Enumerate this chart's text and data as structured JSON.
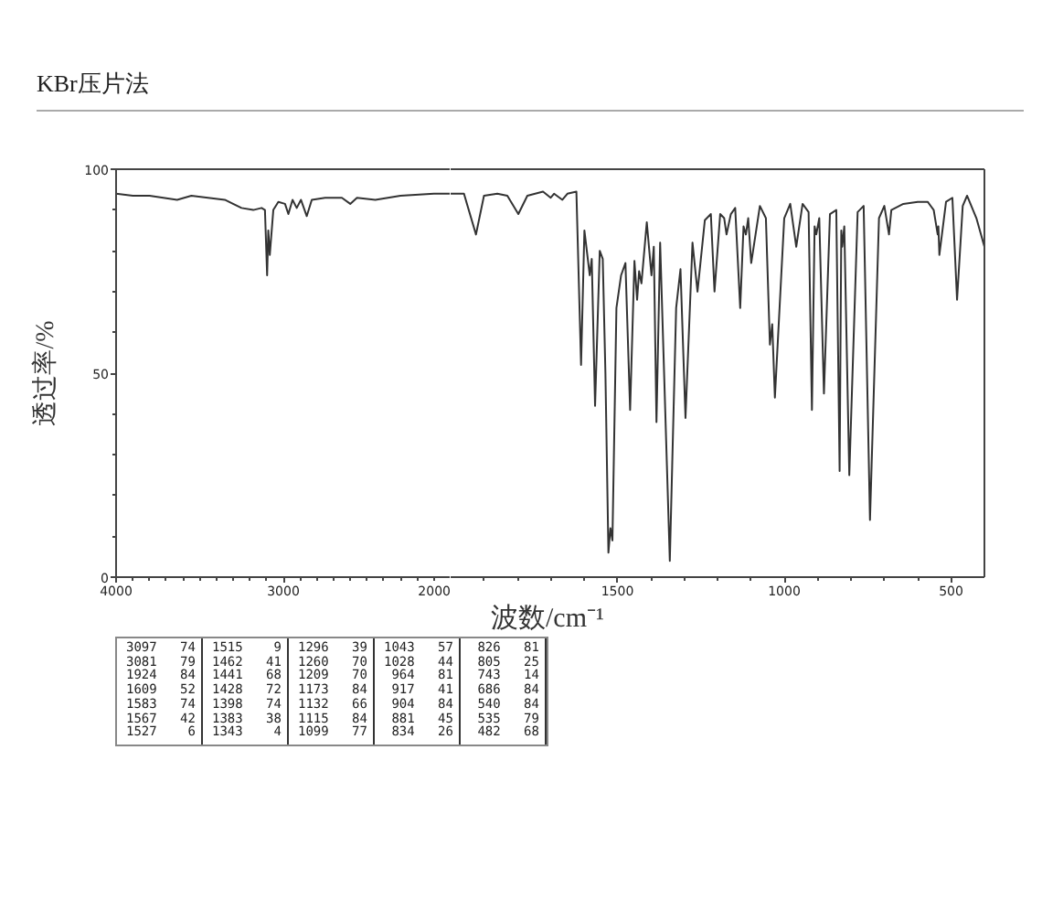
{
  "chart_data": [
    {
      "type": "line",
      "title": "KBr压片法",
      "ylabel": "透过率/%",
      "xlim": [
        4000,
        2000
      ],
      "ylim": [
        0,
        100
      ],
      "xticks": [
        4000,
        {
          "value": 3900,
          "label": null
        },
        {
          "value": 3800,
          "label": null
        },
        {
          "value": 3700,
          "label": null
        },
        {
          "value": 3600,
          "label": null
        },
        {
          "value": 3500,
          "label": null
        },
        {
          "value": 3400,
          "label": null
        },
        {
          "value": 3300,
          "label": null
        },
        {
          "value": 3200,
          "label": null
        },
        {
          "value": 3100,
          "label": null
        },
        3000,
        {
          "value": 2900,
          "label": null
        },
        {
          "value": 2800,
          "label": null
        },
        {
          "value": 2700,
          "label": null
        },
        {
          "value": 2600,
          "label": null
        },
        {
          "value": 2500,
          "label": null
        },
        {
          "value": 2400,
          "label": null
        },
        {
          "value": 2300,
          "label": null
        },
        {
          "value": 2200,
          "label": null
        },
        {
          "value": 2100,
          "label": null
        },
        2000
      ],
      "yticks": [
        0,
        {
          "value": 10,
          "label": null
        },
        {
          "value": 20,
          "label": null
        },
        {
          "value": 30,
          "label": null
        },
        {
          "value": 40,
          "label": null
        },
        50,
        {
          "value": 60,
          "label": null
        },
        {
          "value": 70,
          "label": null
        },
        {
          "value": 80,
          "label": null
        },
        {
          "value": 90,
          "label": null
        },
        100
      ],
      "color": "#333333",
      "x": [
        4000,
        3900,
        3800,
        3635,
        3550,
        3450,
        3350,
        3250,
        3180,
        3130,
        3110,
        3097,
        3090,
        3081,
        3060,
        3030,
        2990,
        2970,
        2945,
        2920,
        2895,
        2860,
        2830,
        2750,
        2650,
        2600,
        2560,
        2450,
        2300,
        2100,
        2000
      ],
      "values": [
        94,
        93.5,
        93.5,
        92.5,
        93.5,
        93,
        92.5,
        90.5,
        90,
        90.5,
        90,
        74,
        85,
        79,
        90,
        92,
        91.5,
        89,
        92.5,
        90.5,
        92.5,
        88.5,
        92.5,
        93,
        93,
        91.5,
        93,
        92.5,
        93.5,
        94,
        94
      ],
      "annotations": [
        "3097 74",
        "3081 79"
      ]
    },
    {
      "type": "line",
      "xlabel": "波数/cm⁻¹",
      "tick_labels": "x",
      "xlim": [
        2000,
        400
      ],
      "ylim": [
        0,
        100
      ],
      "xticks": [
        {
          "value": 1900,
          "label": null
        },
        {
          "value": 1800,
          "label": null
        },
        {
          "value": 1700,
          "label": null
        },
        {
          "value": 1600,
          "label": null
        },
        1500,
        {
          "value": 1400,
          "label": null
        },
        {
          "value": 1300,
          "label": null
        },
        {
          "value": 1200,
          "label": null
        },
        {
          "value": 1100,
          "label": null
        },
        1000,
        {
          "value": 900,
          "label": null
        },
        {
          "value": 800,
          "label": null
        },
        {
          "value": 700,
          "label": null
        },
        {
          "value": 600,
          "label": null
        },
        500
      ],
      "color": "#333333",
      "x": [
        2000,
        1960,
        1924,
        1900,
        1860,
        1830,
        1797,
        1770,
        1723,
        1700,
        1690,
        1665,
        1650,
        1623,
        1609,
        1599,
        1583,
        1577,
        1567,
        1553,
        1544,
        1536,
        1527,
        1521,
        1515,
        1503,
        1489,
        1476,
        1462,
        1449,
        1441,
        1435,
        1428,
        1412,
        1398,
        1391,
        1383,
        1372,
        1343,
        1324,
        1311,
        1296,
        1275,
        1260,
        1238,
        1220,
        1209,
        1192,
        1180,
        1173,
        1160,
        1147,
        1132,
        1122,
        1115,
        1108,
        1099,
        1073,
        1055,
        1043,
        1036,
        1028,
        1000,
        982,
        964,
        945,
        927,
        917,
        909,
        904,
        895,
        881,
        863,
        844,
        834,
        829,
        826,
        820,
        805,
        780,
        762,
        743,
        716,
        700,
        686,
        679,
        643,
        600,
        570,
        552,
        540,
        538,
        535,
        515,
        496,
        482,
        465,
        452,
        424,
        400
      ],
      "values": [
        94,
        94,
        84,
        93.5,
        94,
        93.5,
        89,
        93.5,
        94.5,
        93,
        94,
        92.5,
        94,
        94.5,
        52,
        85,
        74,
        78,
        42,
        80,
        78,
        50,
        6,
        12,
        9,
        66,
        74,
        77,
        41,
        77.5,
        68,
        75,
        72,
        87,
        74,
        81,
        38,
        82,
        4,
        66,
        75.5,
        39,
        82,
        70,
        87.5,
        89,
        70,
        89,
        88,
        84,
        89,
        90.5,
        66,
        86,
        84,
        88,
        77,
        91,
        88,
        57,
        62,
        44,
        88,
        91.5,
        81,
        91.5,
        89.5,
        41,
        86,
        84,
        88,
        45,
        89,
        90,
        26,
        85,
        81,
        86,
        25,
        89.5,
        91,
        14,
        88,
        91,
        84,
        90,
        91.5,
        92,
        92,
        90,
        84,
        86,
        79,
        92,
        93,
        68,
        91,
        93.5,
        88,
        81
      ],
      "annotations": [
        "1924 84",
        "1609 52",
        "1583 74",
        "1567 42",
        "1527 6",
        "1515 9",
        "1462 41",
        "1441 68",
        "1428 72",
        "1398 74",
        "1383 38",
        "1343 4",
        "1296 39",
        "1260 70",
        "1209 70",
        "1173 84",
        "1132 66",
        "1115 84",
        "1099 77",
        "1043 57",
        "1028 44",
        "964 81",
        "917 41",
        "904 84",
        "881 45",
        "834 26",
        "826 81",
        "805 25",
        "743 14",
        "686 84",
        "540 84",
        "535 79",
        "482 68"
      ]
    }
  ]
}
